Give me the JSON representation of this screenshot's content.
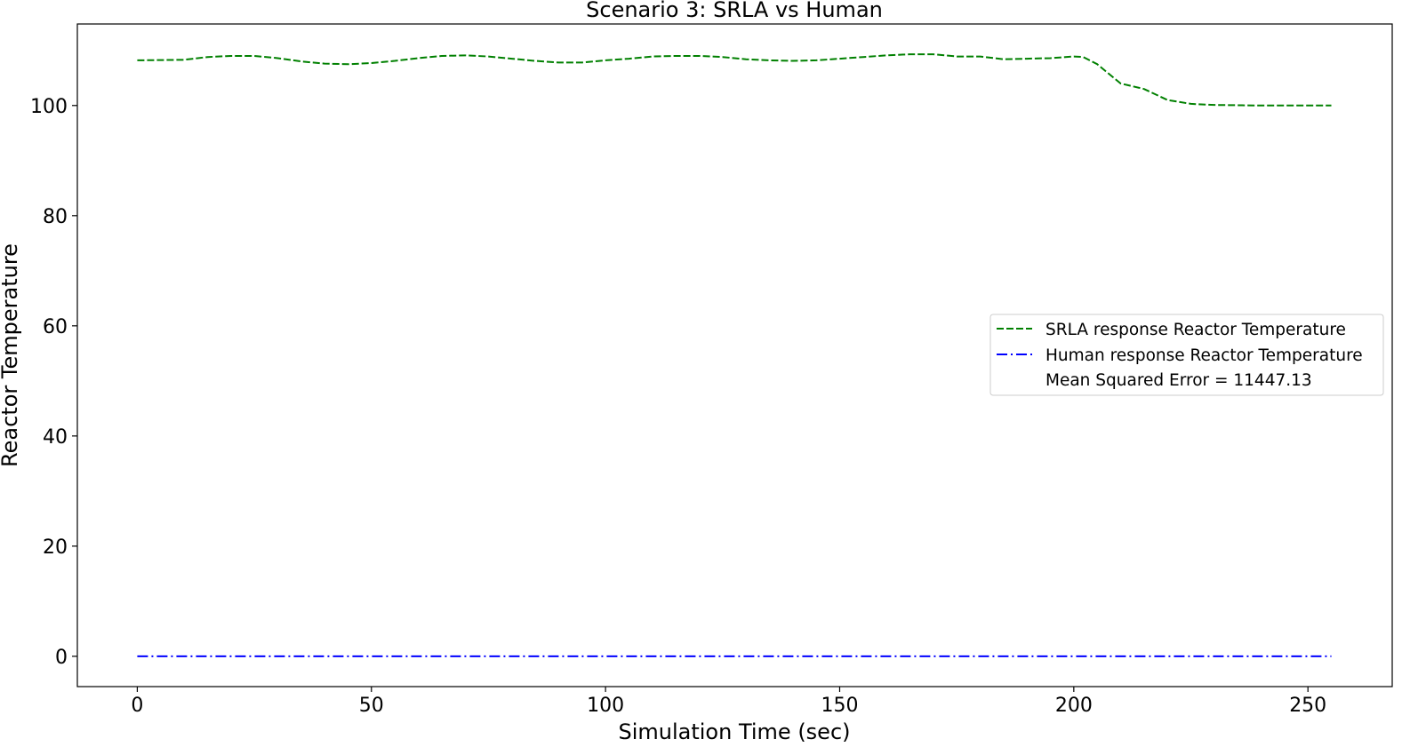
{
  "chart_data": {
    "type": "line",
    "title": "Scenario 3: SRLA vs Human",
    "xlabel": "Simulation Time (sec)",
    "ylabel": "Reactor Temperature",
    "xlim": [
      -12.8,
      268.0
    ],
    "ylim": [
      -5.5,
      114.8
    ],
    "xticks": [
      0,
      50,
      100,
      150,
      200,
      250
    ],
    "yticks": [
      0,
      20,
      40,
      60,
      80,
      100
    ],
    "xtick_labels": [
      "0",
      "50",
      "100",
      "150",
      "200",
      "250"
    ],
    "ytick_labels": [
      "0",
      "20",
      "40",
      "60",
      "80",
      "100"
    ],
    "grid": false,
    "legend_position": "center-right",
    "series": [
      {
        "name": "SRLA response Reactor Temperature",
        "color": "#008000",
        "style": "dashed",
        "x": [
          0,
          10,
          15,
          20,
          25,
          30,
          35,
          40,
          45,
          50,
          55,
          60,
          65,
          70,
          75,
          80,
          85,
          90,
          95,
          100,
          105,
          110,
          115,
          120,
          125,
          130,
          135,
          140,
          145,
          150,
          155,
          160,
          165,
          170,
          175,
          180,
          185,
          190,
          195,
          200,
          202,
          205,
          210,
          215,
          220,
          225,
          230,
          240,
          255
        ],
        "y": [
          108.2,
          108.3,
          108.8,
          109.0,
          109.0,
          108.6,
          108.0,
          107.6,
          107.5,
          107.7,
          108.1,
          108.6,
          109.0,
          109.1,
          108.9,
          108.5,
          108.1,
          107.8,
          107.8,
          108.2,
          108.5,
          108.9,
          109.0,
          109.0,
          108.8,
          108.4,
          108.2,
          108.1,
          108.2,
          108.5,
          108.8,
          109.1,
          109.3,
          109.3,
          108.9,
          108.9,
          108.4,
          108.5,
          108.6,
          108.9,
          108.8,
          107.5,
          104.0,
          103.0,
          101.0,
          100.3,
          100.1,
          100.0,
          100.0
        ]
      },
      {
        "name": "Human response Reactor Temperature",
        "color": "#0000ff",
        "style": "dashdot",
        "x": [
          0,
          255
        ],
        "y": [
          0,
          0
        ]
      }
    ],
    "annotations": [
      "Mean Squared Error = 11447.13"
    ]
  }
}
